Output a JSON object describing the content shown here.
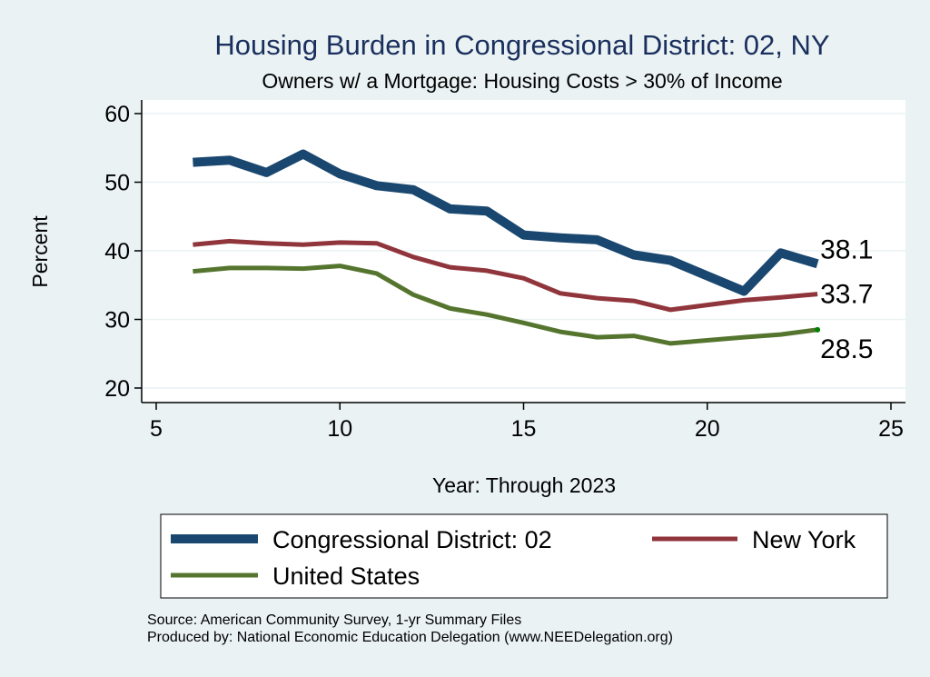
{
  "chart_data": {
    "type": "line",
    "title": "Housing Burden in Congressional District:  02, NY",
    "subtitle": "Owners w/ a Mortgage: Housing Costs > 30% of Income",
    "xlabel": "Year: Through 2023",
    "ylabel": "Percent",
    "xlim": [
      5,
      25
    ],
    "ylim": [
      20,
      60
    ],
    "xticks": [
      5,
      10,
      15,
      20,
      25
    ],
    "yticks": [
      20,
      30,
      40,
      50,
      60
    ],
    "grid": "horizontal",
    "legend_position": "bottom",
    "series": [
      {
        "name": "Congressional District:  02",
        "color": "#1a476f",
        "x": [
          6,
          7,
          8,
          9,
          10,
          11,
          12,
          13,
          14,
          15,
          16,
          17,
          18,
          19,
          21,
          22,
          23
        ],
        "values": [
          52.9,
          53.2,
          51.4,
          54.1,
          51.2,
          49.5,
          48.9,
          46.1,
          45.8,
          42.3,
          41.9,
          41.6,
          39.4,
          38.6,
          34.1,
          39.7,
          38.1
        ],
        "end_label": "38.1"
      },
      {
        "name": "New York",
        "color": "#90353b",
        "x": [
          6,
          7,
          8,
          9,
          10,
          11,
          12,
          13,
          14,
          15,
          16,
          17,
          18,
          19,
          21,
          22,
          23
        ],
        "values": [
          40.9,
          41.4,
          41.1,
          40.9,
          41.2,
          41.1,
          39.1,
          37.6,
          37.1,
          36.0,
          33.8,
          33.1,
          32.7,
          31.4,
          32.8,
          33.2,
          33.7
        ],
        "end_label": "33.7"
      },
      {
        "name": "United States",
        "color": "#55752f",
        "x": [
          6,
          7,
          8,
          9,
          10,
          11,
          12,
          13,
          14,
          15,
          16,
          17,
          18,
          19,
          21,
          22,
          23
        ],
        "values": [
          37.0,
          37.5,
          37.5,
          37.4,
          37.8,
          36.7,
          33.6,
          31.6,
          30.7,
          29.5,
          28.2,
          27.4,
          27.6,
          26.5,
          27.4,
          27.8,
          28.5
        ],
        "end_label": "28.5"
      }
    ],
    "notes": [
      "Source: American Community Survey, 1-yr Summary Files",
      "Produced by: National Economic Education Delegation (www.NEEDelegation.org)"
    ]
  }
}
